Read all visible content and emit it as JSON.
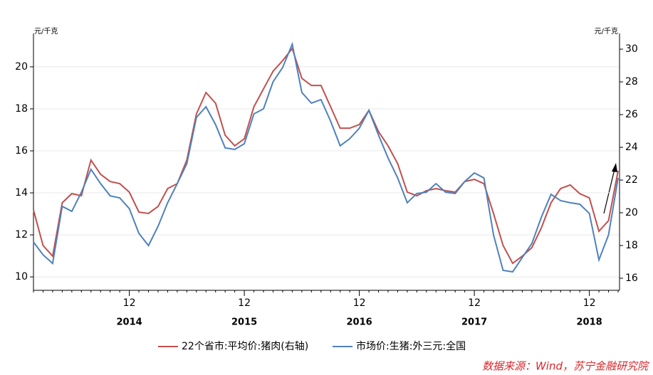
{
  "chart_data": {
    "type": "line",
    "y_unit": "元/千克",
    "y2_unit": "元/千克",
    "source": "数据来源：Wind，苏宁金融研究院",
    "categories": [
      null,
      null,
      null,
      null,
      null,
      null,
      null,
      null,
      null,
      null,
      "12",
      null,
      null,
      null,
      null,
      null,
      null,
      null,
      null,
      null,
      null,
      null,
      "12",
      null,
      null,
      null,
      null,
      null,
      null,
      null,
      null,
      null,
      null,
      null,
      "12",
      null,
      null,
      null,
      null,
      null,
      null,
      null,
      null,
      null,
      null,
      null,
      "12",
      null,
      null,
      null,
      null,
      null,
      null,
      null,
      null,
      null,
      null,
      null,
      "12",
      null,
      null,
      null
    ],
    "x_groups": [
      null,
      null,
      null,
      null,
      null,
      null,
      null,
      null,
      null,
      null,
      "2014",
      null,
      null,
      null,
      null,
      null,
      null,
      null,
      null,
      null,
      null,
      null,
      "2015",
      null,
      null,
      null,
      null,
      null,
      null,
      null,
      null,
      null,
      null,
      null,
      "2016",
      null,
      null,
      null,
      null,
      null,
      null,
      null,
      null,
      null,
      null,
      null,
      "2017",
      null,
      null,
      null,
      null,
      null,
      null,
      null,
      null,
      null,
      null,
      null,
      "2018",
      null,
      null,
      null
    ],
    "series": [
      {
        "name": "22个省市:平均价:猪肉(右轴)",
        "color": "#c0504d",
        "axis": "y2",
        "values": [
          20.17,
          18.0,
          17.35,
          20.61,
          21.17,
          21.04,
          23.22,
          22.35,
          21.91,
          21.78,
          21.26,
          20.04,
          19.96,
          20.39,
          21.48,
          21.78,
          23.22,
          26.04,
          27.35,
          26.7,
          24.74,
          24.09,
          24.52,
          26.48,
          27.57,
          28.65,
          29.3,
          30.04,
          28.22,
          27.78,
          27.78,
          26.48,
          25.17,
          25.17,
          25.39,
          26.26,
          24.96,
          24.09,
          23.0,
          21.26,
          21.04,
          21.35,
          21.48,
          21.35,
          21.26,
          21.91,
          22.04,
          21.78,
          19.96,
          18.0,
          16.91,
          17.35,
          17.87,
          19.09,
          20.61,
          21.48,
          21.7,
          21.17,
          20.91,
          18.87,
          19.52,
          22.57
        ]
      },
      {
        "name": "市场价:生猪:外三元:全国",
        "color": "#4f81bd",
        "values": [
          11.66,
          11.05,
          10.64,
          13.36,
          13.12,
          14.03,
          15.12,
          14.44,
          13.86,
          13.76,
          13.25,
          12.07,
          11.49,
          12.41,
          13.53,
          14.44,
          15.39,
          17.59,
          18.1,
          17.25,
          16.14,
          16.07,
          16.34,
          17.76,
          18.0,
          19.29,
          19.97,
          21.08,
          18.78,
          18.27,
          18.44,
          17.42,
          16.24,
          16.58,
          17.08,
          17.93,
          16.75,
          15.66,
          14.71,
          13.53,
          13.97,
          14.03,
          14.44,
          14.03,
          13.97,
          14.54,
          14.95,
          14.71,
          12.0,
          10.31,
          10.24,
          10.92,
          11.59,
          12.85,
          13.93,
          13.63,
          13.53,
          13.46,
          13.02,
          10.81,
          12.0,
          14.71
        ]
      }
    ],
    "ylim": [
      9.36,
      21.59
    ],
    "yticks": [
      10,
      12,
      14,
      16,
      18,
      20
    ],
    "y2lim": [
      15.26,
      30.96
    ],
    "y2ticks": [
      16,
      18,
      20,
      22,
      24,
      26,
      28,
      30
    ],
    "grid": true,
    "legend": "bottom"
  }
}
